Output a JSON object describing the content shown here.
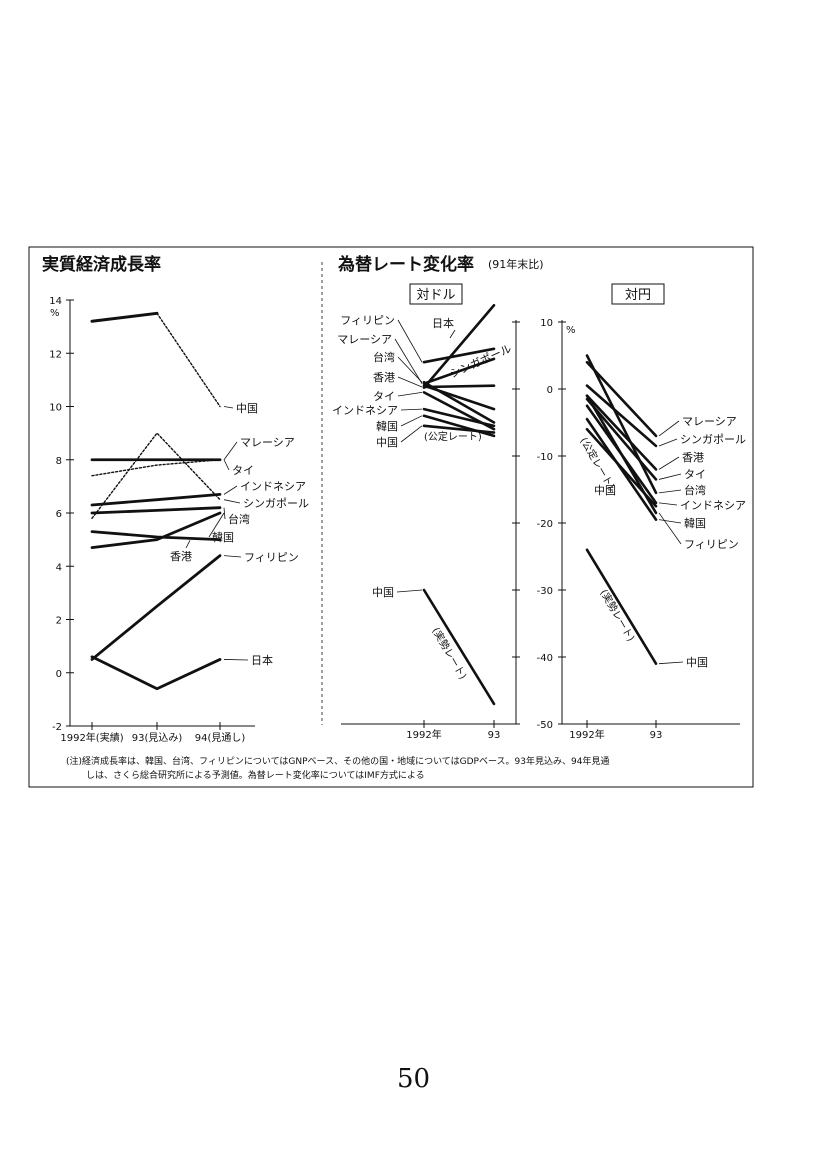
{
  "page_number": "50",
  "panel_left": {
    "title": "実質経済成長率",
    "unit": "%"
  },
  "panel_right": {
    "title": "為替レート変化率",
    "subtitle": "(91年末比)"
  },
  "note": {
    "line1": "(注)経済成長率は、韓国、台湾、フィリピンについてはGNPベース、その他の国・地域についてはGDPベース。93年見込み、94年見通",
    "line2": "しは、さくら総合研究所による予測値。為替レート変化率についてはIMF方式による"
  },
  "chart_data": [
    {
      "type": "line",
      "title": "実質経済成長率",
      "ylabel": "%",
      "categories": [
        "1992年(実績)",
        "93(見込み)",
        "94(見通し)"
      ],
      "ylim": [
        -2,
        14
      ],
      "yticks": [
        -2,
        0,
        2,
        4,
        6,
        8,
        10,
        12,
        14
      ],
      "series": [
        {
          "name": "中国",
          "values": [
            13.2,
            13.5,
            10.0
          ],
          "style": "solid-dotted"
        },
        {
          "name": "マレーシア",
          "values": [
            8.0,
            8.0,
            8.0
          ],
          "style": "solid"
        },
        {
          "name": "タイ",
          "values": [
            7.4,
            7.8,
            8.0
          ],
          "style": "dotted"
        },
        {
          "name": "インドネシア",
          "values": [
            6.3,
            6.5,
            6.7
          ],
          "style": "solid"
        },
        {
          "name": "シンガポール",
          "values": [
            5.8,
            9.0,
            6.5
          ],
          "style": "dotted"
        },
        {
          "name": "台湾",
          "values": [
            6.0,
            6.1,
            6.2
          ],
          "style": "solid"
        },
        {
          "name": "韓国",
          "values": [
            4.7,
            5.0,
            6.0
          ],
          "style": "solid"
        },
        {
          "name": "香港",
          "values": [
            5.3,
            5.1,
            5.0
          ],
          "style": "solid"
        },
        {
          "name": "フィリピン",
          "values": [
            0.5,
            2.5,
            4.4
          ],
          "style": "solid"
        },
        {
          "name": "日本",
          "values": [
            0.6,
            -0.6,
            0.5
          ],
          "style": "solid"
        }
      ]
    },
    {
      "type": "line",
      "title": "対ドル",
      "categories": [
        "1992年",
        "93"
      ],
      "ylim": [
        -50,
        10
      ],
      "series": [
        {
          "name": "日本",
          "values": [
            0.2,
            12.5
          ]
        },
        {
          "name": "フィリピン",
          "values": [
            4.0,
            6.0
          ]
        },
        {
          "name": "マレーシア",
          "values": [
            0.8,
            4.5
          ]
        },
        {
          "name": "台湾",
          "values": [
            1.0,
            -5.0
          ]
        },
        {
          "name": "シンガポール",
          "values": [
            0.5,
            -3.0
          ]
        },
        {
          "name": "香港",
          "values": [
            0.3,
            0.5
          ]
        },
        {
          "name": "タイ",
          "values": [
            -0.5,
            -6.0
          ]
        },
        {
          "name": "インドネシア",
          "values": [
            -3.0,
            -5.5
          ]
        },
        {
          "name": "韓国",
          "values": [
            -4.0,
            -7.0
          ]
        },
        {
          "name": "中国 (公定レート)",
          "values": [
            -5.5,
            -6.5
          ]
        },
        {
          "name": "中国 (実勢レート)",
          "values": [
            -30.0,
            -47.0
          ]
        }
      ],
      "labels": [
        "(公定レート)",
        "(実勢レート)"
      ]
    },
    {
      "type": "line",
      "title": "対円",
      "categories": [
        "1992年",
        "93"
      ],
      "ylim": [
        -50,
        10
      ],
      "yticks": [
        -50,
        -40,
        -30,
        -20,
        -10,
        0,
        10
      ],
      "ylabel": "%",
      "series": [
        {
          "name": "マレーシア",
          "values": [
            4.0,
            -7.0
          ]
        },
        {
          "name": "シンガポール",
          "values": [
            0.5,
            -8.5
          ]
        },
        {
          "name": "香港",
          "values": [
            -1.0,
            -12.0
          ]
        },
        {
          "name": "タイ",
          "values": [
            -1.5,
            -13.5
          ]
        },
        {
          "name": "台湾",
          "values": [
            5.0,
            -15.5
          ]
        },
        {
          "name": "インドネシア",
          "values": [
            -2.5,
            -17.0
          ]
        },
        {
          "name": "韓国",
          "values": [
            -4.5,
            -19.5
          ]
        },
        {
          "name": "フィリピン",
          "values": [
            -1.0,
            -18.5
          ]
        },
        {
          "name": "中国 (公定レート)",
          "values": [
            -6.0,
            -17.5
          ]
        },
        {
          "name": "中国 (実勢レート)",
          "values": [
            -24.0,
            -41.0
          ]
        }
      ],
      "labels": [
        "(公定レート)",
        "(実勢レート)"
      ]
    }
  ]
}
